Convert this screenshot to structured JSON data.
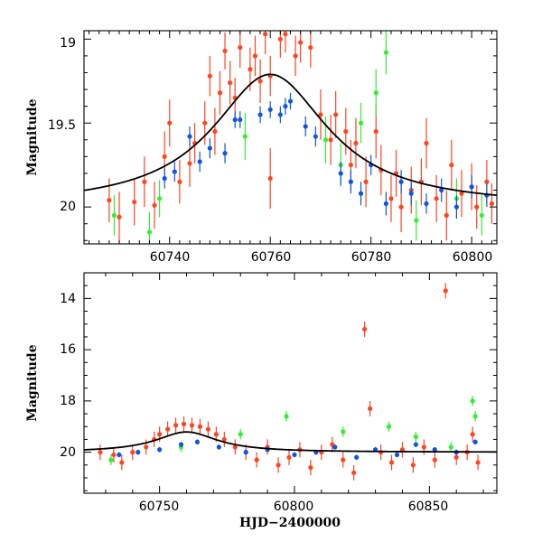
{
  "chart_data": [
    {
      "id": "top",
      "type": "scatter",
      "title": "",
      "xlabel": "",
      "ylabel": "Magnitude",
      "xlim": [
        60723,
        60805
      ],
      "ylim": [
        20.22,
        18.95
      ],
      "y_inverted": true,
      "xticks": [
        60740,
        60760,
        60780,
        60800
      ],
      "yticks": [
        19,
        19.5,
        20
      ],
      "xtick_labels": [
        "60740",
        "60760",
        "60780",
        "60800"
      ],
      "ytick_labels": [
        "19",
        "19.5",
        "20"
      ],
      "colors": {
        "red": "#ff4422",
        "green": "#33ee33",
        "blue": "#1155dd",
        "model": "#000000"
      },
      "model": {
        "peak_x": 60760,
        "peak_mag": 19.21,
        "base_mag": 20.0,
        "amplitude": 0.79,
        "width": 14
      },
      "series": [
        {
          "color": "red",
          "points": [
            [
              60728,
              19.96,
              0.13
            ],
            [
              60730,
              20.06,
              0.15
            ],
            [
              60733,
              19.97,
              0.14
            ],
            [
              60735,
              19.85,
              0.15
            ],
            [
              60737,
              19.99,
              0.14
            ],
            [
              60739,
              19.7,
              0.15
            ],
            [
              60740,
              19.5,
              0.14
            ],
            [
              60742,
              19.85,
              0.13
            ],
            [
              60744,
              19.74,
              0.14
            ],
            [
              60745,
              19.62,
              0.12
            ],
            [
              60747,
              19.5,
              0.13
            ],
            [
              60748,
              19.22,
              0.12
            ],
            [
              60749,
              19.55,
              0.14
            ],
            [
              60750,
              19.32,
              0.13
            ],
            [
              60751,
              19.07,
              0.11
            ],
            [
              60752,
              19.26,
              0.13
            ],
            [
              60753,
              19.35,
              0.12
            ],
            [
              60754,
              19.05,
              0.12
            ],
            [
              60756,
              19.18,
              0.13
            ],
            [
              60757,
              19.1,
              0.12
            ],
            [
              60758,
              19.25,
              0.13
            ],
            [
              60759,
              18.97,
              0.12
            ],
            [
              60760,
              19.22,
              0.12
            ],
            [
              60762,
              19.0,
              0.11
            ],
            [
              60763,
              18.97,
              0.11
            ],
            [
              60765,
              19.1,
              0.12
            ],
            [
              60766,
              19.02,
              0.12
            ],
            [
              60768,
              19.05,
              0.12
            ],
            [
              60760,
              19.83,
              0.18
            ],
            [
              60770,
              19.45,
              0.15
            ],
            [
              60772,
              19.6,
              0.15
            ],
            [
              60773,
              19.45,
              0.14
            ],
            [
              60775,
              19.55,
              0.14
            ],
            [
              60776,
              19.75,
              0.15
            ],
            [
              60777,
              19.62,
              0.15
            ],
            [
              60779,
              19.85,
              0.15
            ],
            [
              60781,
              19.55,
              0.16
            ],
            [
              60782,
              19.78,
              0.15
            ],
            [
              60784,
              19.95,
              0.14
            ],
            [
              60785,
              19.8,
              0.14
            ],
            [
              60786,
              20.0,
              0.15
            ],
            [
              60788,
              19.9,
              0.14
            ],
            [
              60790,
              19.85,
              0.14
            ],
            [
              60791,
              19.62,
              0.15
            ],
            [
              60793,
              19.95,
              0.14
            ],
            [
              60795,
              20.05,
              0.15
            ],
            [
              60796,
              19.75,
              0.15
            ],
            [
              60798,
              19.92,
              0.14
            ],
            [
              60800,
              19.88,
              0.14
            ],
            [
              60801,
              20.0,
              0.13
            ],
            [
              60803,
              19.85,
              0.13
            ],
            [
              60804,
              19.98,
              0.12
            ]
          ]
        },
        {
          "color": "green",
          "points": [
            [
              60729,
              20.05,
              0.12
            ],
            [
              60736,
              20.15,
              0.12
            ],
            [
              60738,
              19.95,
              0.11
            ],
            [
              60755,
              19.58,
              0.14
            ],
            [
              60771,
              19.6,
              0.14
            ],
            [
              60774,
              19.75,
              0.13
            ],
            [
              60778,
              19.5,
              0.12
            ],
            [
              60781,
              19.32,
              0.14
            ],
            [
              60783,
              19.08,
              0.13
            ],
            [
              60789,
              20.08,
              0.12
            ],
            [
              60797,
              19.95,
              0.12
            ],
            [
              60802,
              20.05,
              0.12
            ]
          ]
        },
        {
          "color": "blue",
          "points": [
            [
              60739,
              19.83,
              0.06
            ],
            [
              60741,
              19.79,
              0.06
            ],
            [
              60744,
              19.58,
              0.06
            ],
            [
              60746,
              19.73,
              0.06
            ],
            [
              60748,
              19.65,
              0.06
            ],
            [
              60751,
              19.68,
              0.06
            ],
            [
              60753,
              19.48,
              0.05
            ],
            [
              60754,
              19.48,
              0.05
            ],
            [
              60758,
              19.45,
              0.05
            ],
            [
              60760,
              19.42,
              0.05
            ],
            [
              60762,
              19.45,
              0.05
            ],
            [
              60763,
              19.4,
              0.05
            ],
            [
              60764,
              19.37,
              0.05
            ],
            [
              60767,
              19.52,
              0.06
            ],
            [
              60769,
              19.58,
              0.06
            ],
            [
              60774,
              19.8,
              0.07
            ],
            [
              60776,
              19.85,
              0.07
            ],
            [
              60778,
              19.92,
              0.07
            ],
            [
              60780,
              19.75,
              0.06
            ],
            [
              60783,
              19.98,
              0.07
            ],
            [
              60786,
              19.85,
              0.07
            ],
            [
              60788,
              19.92,
              0.07
            ],
            [
              60791,
              19.98,
              0.06
            ],
            [
              60794,
              19.9,
              0.07
            ],
            [
              60797,
              20.0,
              0.07
            ],
            [
              60800,
              19.88,
              0.07
            ],
            [
              60803,
              19.93,
              0.07
            ]
          ]
        }
      ]
    },
    {
      "id": "bottom",
      "type": "scatter",
      "title": "",
      "xlabel": "HJD−2400000",
      "ylabel": "Magnitude",
      "xlim": [
        60722,
        60875
      ],
      "ylim": [
        21.6,
        13.0
      ],
      "y_inverted": true,
      "xticks": [
        60750,
        60800,
        60850
      ],
      "yticks": [
        14,
        16,
        18,
        20
      ],
      "xtick_labels": [
        "60750",
        "60800",
        "60850"
      ],
      "ytick_labels": [
        "14",
        "16",
        "18",
        "20"
      ],
      "colors": {
        "red": "#ff4422",
        "green": "#33ee33",
        "blue": "#1155dd",
        "model": "#000000"
      },
      "model": {
        "peak_x": 60760,
        "peak_mag": 19.21,
        "base_mag": 20.0,
        "amplitude": 0.79,
        "width": 14
      },
      "series": [
        {
          "color": "red",
          "points": [
            [
              60728,
              20.0,
              0.3
            ],
            [
              60733,
              20.1,
              0.3
            ],
            [
              60736,
              20.4,
              0.3
            ],
            [
              60740,
              20.0,
              0.3
            ],
            [
              60745,
              19.8,
              0.3
            ],
            [
              60748,
              19.5,
              0.3
            ],
            [
              60750,
              19.3,
              0.3
            ],
            [
              60753,
              19.1,
              0.3
            ],
            [
              60756,
              18.95,
              0.3
            ],
            [
              60759,
              18.9,
              0.3
            ],
            [
              60762,
              18.95,
              0.3
            ],
            [
              60765,
              19.0,
              0.3
            ],
            [
              60768,
              19.1,
              0.3
            ],
            [
              60771,
              19.3,
              0.3
            ],
            [
              60774,
              19.5,
              0.3
            ],
            [
              60778,
              19.8,
              0.3
            ],
            [
              60782,
              20.0,
              0.3
            ],
            [
              60786,
              20.3,
              0.3
            ],
            [
              60790,
              19.8,
              0.3
            ],
            [
              60794,
              20.5,
              0.3
            ],
            [
              60798,
              20.2,
              0.3
            ],
            [
              60802,
              19.9,
              0.3
            ],
            [
              60806,
              20.6,
              0.3
            ],
            [
              60810,
              20.0,
              0.3
            ],
            [
              60814,
              19.7,
              0.3
            ],
            [
              60818,
              20.3,
              0.3
            ],
            [
              60822,
              20.8,
              0.3
            ],
            [
              60826,
              15.2,
              0.3
            ],
            [
              60828,
              18.3,
              0.3
            ],
            [
              60832,
              20.0,
              0.3
            ],
            [
              60836,
              20.4,
              0.3
            ],
            [
              60840,
              19.9,
              0.3
            ],
            [
              60844,
              20.5,
              0.3
            ],
            [
              60848,
              19.8,
              0.3
            ],
            [
              60852,
              20.3,
              0.3
            ],
            [
              60856,
              13.7,
              0.3
            ],
            [
              60860,
              20.2,
              0.3
            ],
            [
              60864,
              20.0,
              0.3
            ],
            [
              60866,
              19.3,
              0.3
            ],
            [
              60868,
              20.4,
              0.3
            ]
          ]
        },
        {
          "color": "green",
          "points": [
            [
              60732,
              20.3,
              0.2
            ],
            [
              60758,
              19.8,
              0.2
            ],
            [
              60780,
              19.3,
              0.2
            ],
            [
              60797,
              18.6,
              0.2
            ],
            [
              60818,
              19.2,
              0.2
            ],
            [
              60835,
              19.0,
              0.2
            ],
            [
              60845,
              19.4,
              0.2
            ],
            [
              60858,
              19.8,
              0.2
            ],
            [
              60866,
              18.0,
              0.2
            ],
            [
              60867,
              18.6,
              0.2
            ]
          ]
        },
        {
          "color": "blue",
          "points": [
            [
              60735,
              20.1,
              0.1
            ],
            [
              60742,
              20.0,
              0.1
            ],
            [
              60750,
              19.9,
              0.1
            ],
            [
              60758,
              19.7,
              0.1
            ],
            [
              60764,
              19.6,
              0.1
            ],
            [
              60772,
              19.8,
              0.1
            ],
            [
              60782,
              20.0,
              0.1
            ],
            [
              60790,
              19.9,
              0.1
            ],
            [
              60800,
              20.1,
              0.1
            ],
            [
              60808,
              20.0,
              0.1
            ],
            [
              60815,
              19.8,
              0.1
            ],
            [
              60823,
              20.2,
              0.1
            ],
            [
              60830,
              19.9,
              0.1
            ],
            [
              60838,
              20.1,
              0.1
            ],
            [
              60845,
              19.7,
              0.1
            ],
            [
              60852,
              19.9,
              0.1
            ],
            [
              60860,
              20.0,
              0.1
            ],
            [
              60867,
              19.6,
              0.1
            ]
          ]
        }
      ]
    }
  ]
}
